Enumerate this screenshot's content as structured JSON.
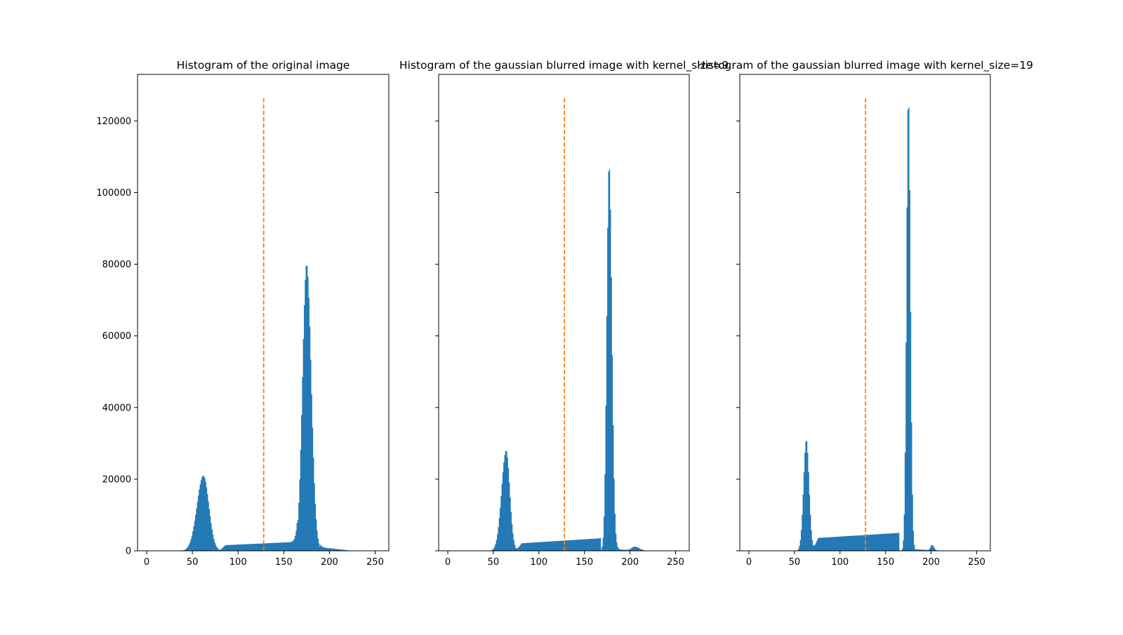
{
  "chart_data": [
    {
      "type": "bar",
      "title": "Histogram of the original image",
      "xlabel": "",
      "ylabel": "",
      "xlim": [
        -10,
        265
      ],
      "ylim": [
        0,
        133000
      ],
      "xticks": [
        0,
        50,
        100,
        150,
        200,
        250
      ],
      "yticks": [
        0,
        20000,
        40000,
        60000,
        80000,
        100000,
        120000
      ],
      "show_y_tick_labels": true,
      "grid": false,
      "bar_color": "#1f77b4",
      "threshold": {
        "x": 128,
        "y_max": 127000,
        "color": "#ff7f0e",
        "style": "dashed"
      },
      "peaks": [
        {
          "center": 62,
          "sigma_left": 7,
          "sigma_right": 6,
          "height": 21000
        },
        {
          "center": 175,
          "sigma_left": 4.5,
          "sigma_right": 5,
          "height": 80000
        }
      ],
      "baseline": {
        "from": 80,
        "to": 165,
        "start": 1500,
        "end": 2500
      },
      "tail": {
        "start": 190,
        "end": 225,
        "value": 1000
      }
    },
    {
      "type": "bar",
      "title": "Histogram of the gaussian blurred image with kernel_size=9",
      "xlabel": "",
      "ylabel": "",
      "xlim": [
        -10,
        265
      ],
      "ylim": [
        0,
        133000
      ],
      "xticks": [
        0,
        50,
        100,
        150,
        200,
        250
      ],
      "yticks": [
        0,
        20000,
        40000,
        60000,
        80000,
        100000,
        120000
      ],
      "show_y_tick_labels": false,
      "grid": false,
      "bar_color": "#1f77b4",
      "threshold": {
        "x": 128,
        "y_max": 127000,
        "color": "#ff7f0e",
        "style": "dashed"
      },
      "peaks": [
        {
          "center": 64,
          "sigma_left": 5,
          "sigma_right": 4,
          "height": 28000
        },
        {
          "center": 177,
          "sigma_left": 2.5,
          "sigma_right": 3,
          "height": 108000
        },
        {
          "center": 205,
          "sigma_left": 3,
          "sigma_right": 5,
          "height": 1000
        }
      ],
      "baseline": {
        "from": 75,
        "to": 168,
        "start": 2000,
        "end": 3500
      },
      "tail": {
        "start": 185,
        "end": 220,
        "value": 400
      }
    },
    {
      "type": "bar",
      "title": "Histogram of the gaussian blurred image with kernel_size=19",
      "xlabel": "",
      "ylabel": "",
      "xlim": [
        -10,
        265
      ],
      "ylim": [
        0,
        133000
      ],
      "xticks": [
        0,
        50,
        100,
        150,
        200,
        250
      ],
      "yticks": [
        0,
        20000,
        40000,
        60000,
        80000,
        100000,
        120000
      ],
      "show_y_tick_labels": false,
      "grid": false,
      "bar_color": "#1f77b4",
      "threshold": {
        "x": 128,
        "y_max": 127000,
        "color": "#ff7f0e",
        "style": "dashed"
      },
      "peaks": [
        {
          "center": 63,
          "sigma_left": 3,
          "sigma_right": 3,
          "height": 31000
        },
        {
          "center": 175,
          "sigma_left": 2,
          "sigma_right": 2.2,
          "height": 127000
        },
        {
          "center": 201,
          "sigma_left": 1.5,
          "sigma_right": 2,
          "height": 1500
        }
      ],
      "baseline": {
        "from": 70,
        "to": 165,
        "start": 3500,
        "end": 5000
      },
      "tail": {
        "start": 183,
        "end": 215,
        "value": 400
      }
    }
  ]
}
